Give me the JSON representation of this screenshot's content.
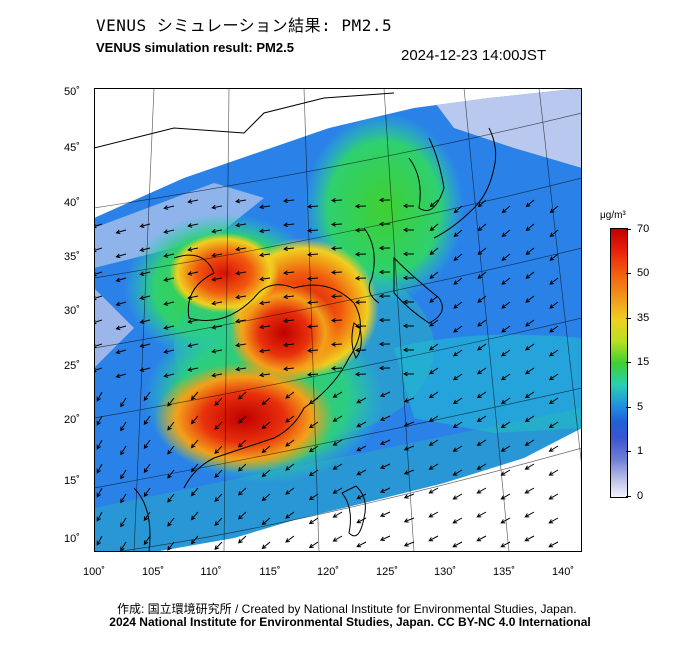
{
  "title": {
    "jp": "VENUS シミュレーション結果: PM2.5",
    "en": "VENUS simulation result: PM2.5",
    "timestamp": "2024-12-23 14:00JST"
  },
  "map": {
    "latitude_labels": [
      "50˚",
      "45˚",
      "40˚",
      "35˚",
      "30˚",
      "25˚",
      "20˚",
      "15˚",
      "10˚"
    ],
    "longitude_labels": [
      "100˚",
      "105˚",
      "110˚",
      "115˚",
      "120˚",
      "125˚",
      "130˚",
      "135˚",
      "140˚"
    ],
    "field": "PM2.5 concentration with wind vectors",
    "colors": {
      "ocean_clean": "#1e6fe0",
      "low": "#3fa7f0",
      "moderate": "#3fd030",
      "high": "#f0d020",
      "very_high": "#f15a0e",
      "extreme": "#c00000"
    }
  },
  "colorbar": {
    "unit": "μg/m³",
    "labels": [
      "70",
      "50",
      "35",
      "15",
      "5",
      "1",
      "0"
    ]
  },
  "credits": {
    "line1": "作成: 国立環境研究所 / Created by National Institute for Environmental Studies, Japan.",
    "line2": "2024 National Institute for Environmental Studies, Japan. CC BY-NC 4.0 International"
  }
}
